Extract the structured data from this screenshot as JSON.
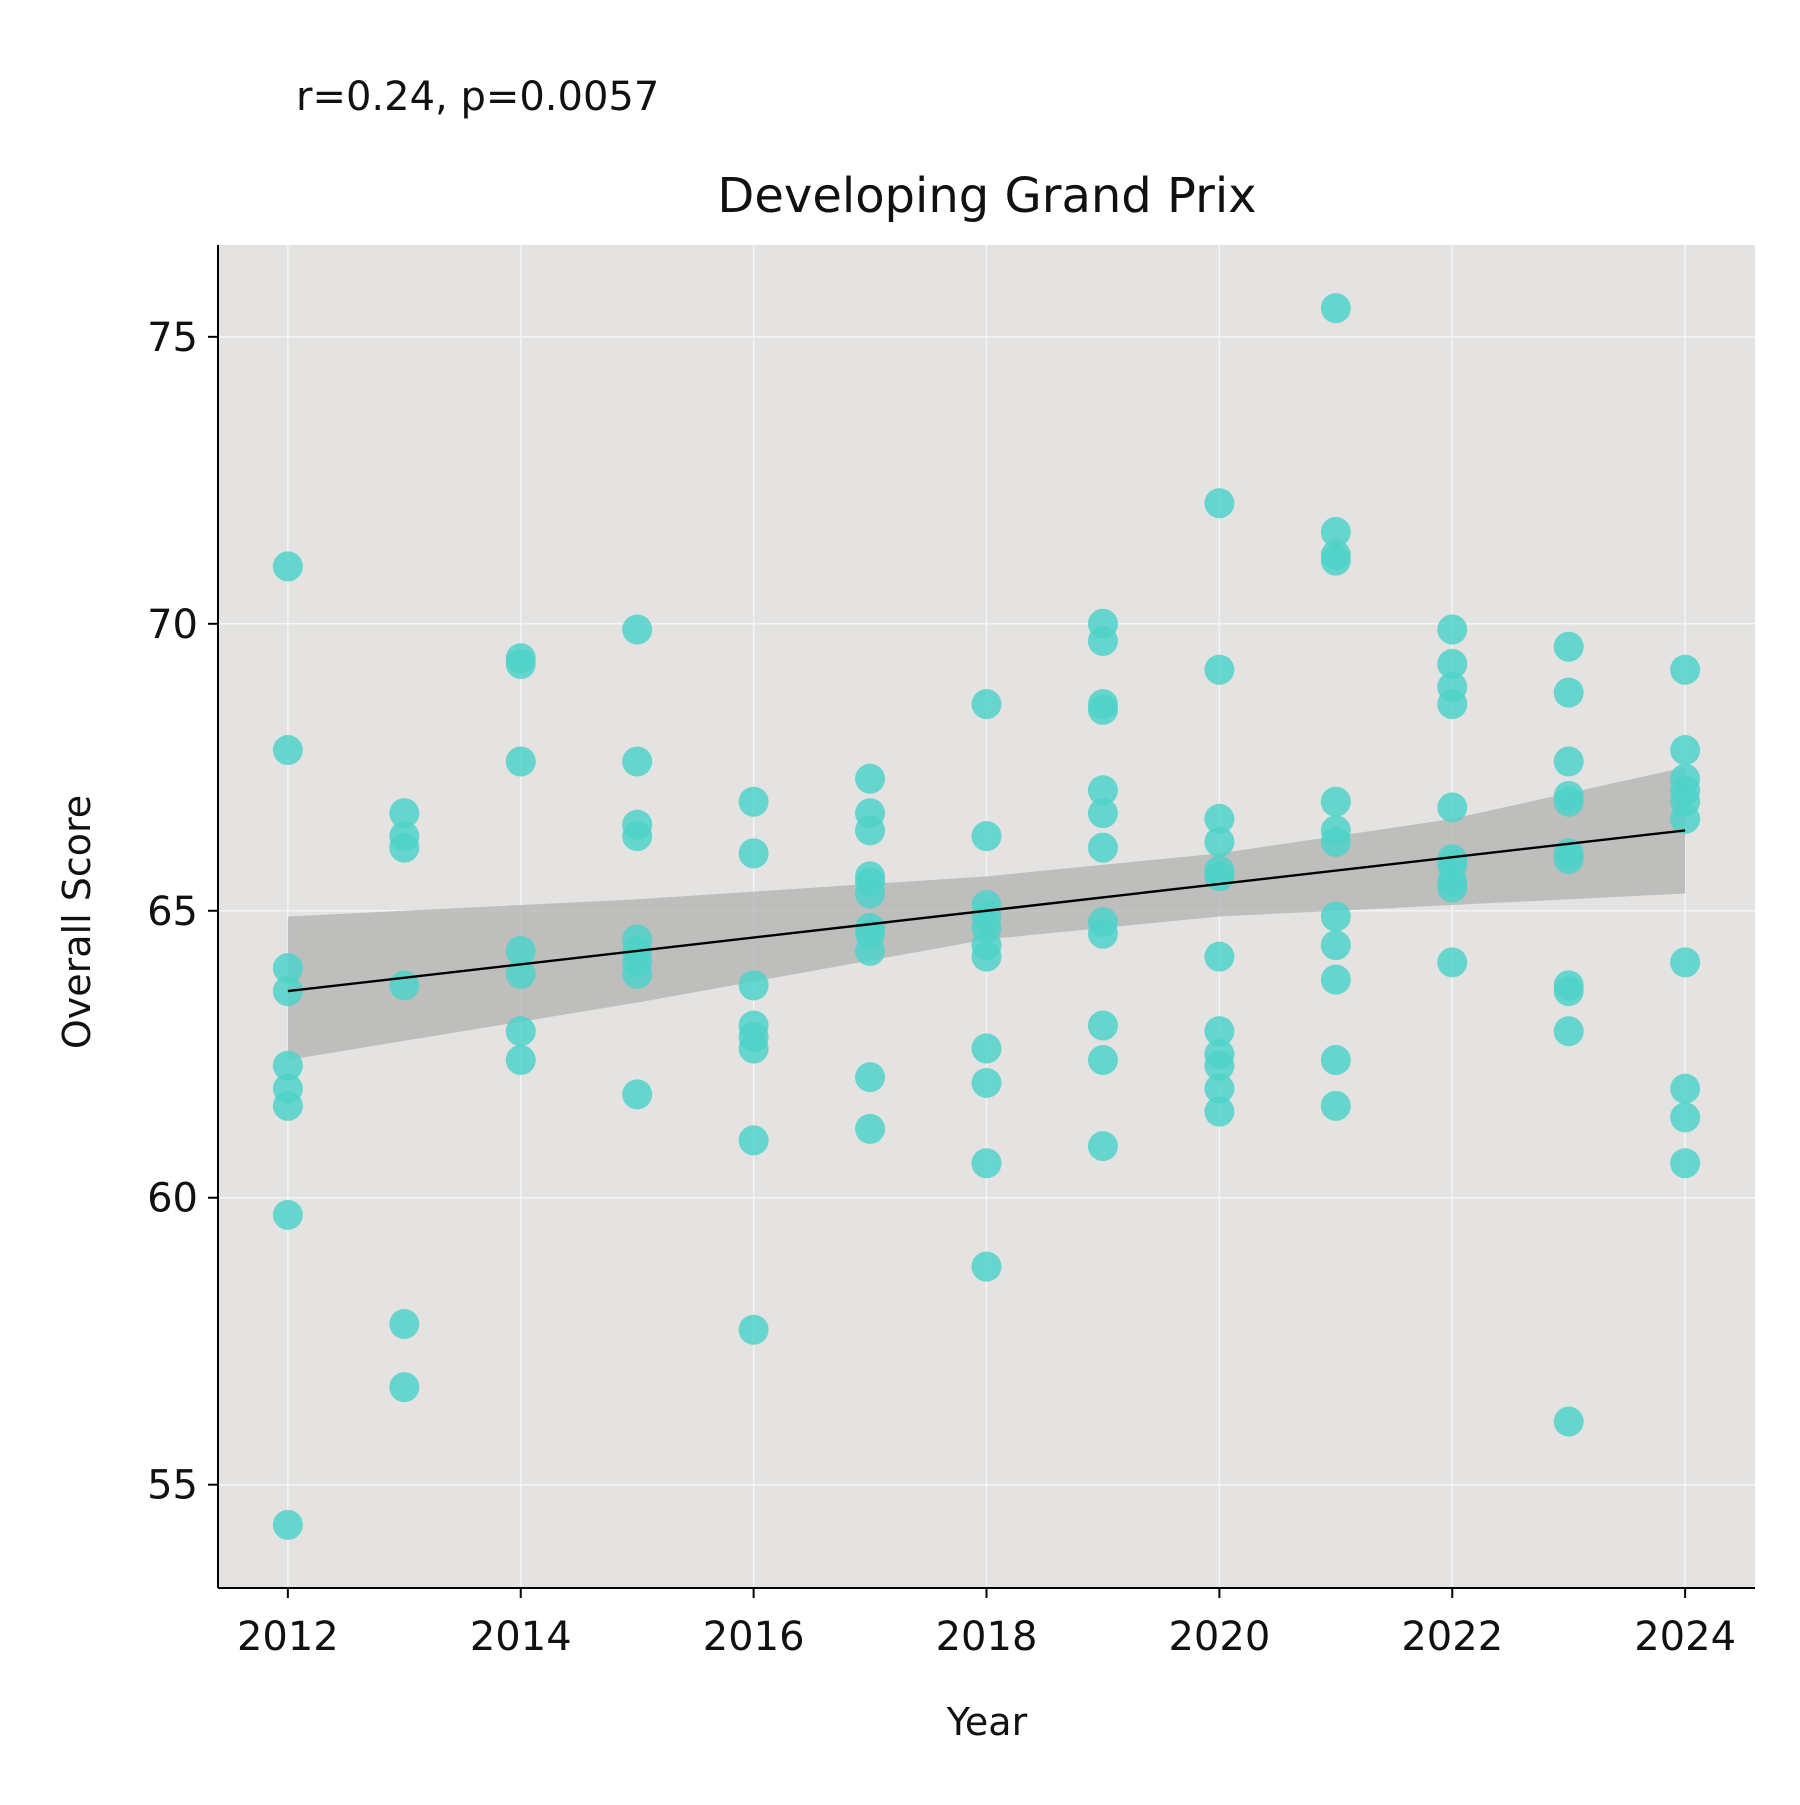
{
  "annotation": "r=0.24, p=0.0057",
  "colors": {
    "background": "#ffffff",
    "plot_background": "#e4e3e2",
    "gridline": "#f4f4f4",
    "point": "#4fd2c9",
    "fit_line": "#000000",
    "confidence_band": "#b2b2b0"
  },
  "chart_data": {
    "type": "scatter",
    "title": "Developing Grand Prix",
    "xlabel": "Year",
    "ylabel": "Overall Score",
    "xlim": [
      2011.4,
      2024.6
    ],
    "ylim": [
      53.2,
      76.6
    ],
    "x_ticks": [
      2012,
      2014,
      2016,
      2018,
      2020,
      2022,
      2024
    ],
    "y_ticks": [
      55,
      60,
      65,
      70,
      75
    ],
    "grid": true,
    "legend": "none",
    "points": [
      {
        "x": 2012,
        "y": 71.0
      },
      {
        "x": 2012,
        "y": 67.8
      },
      {
        "x": 2012,
        "y": 64.0
      },
      {
        "x": 2012,
        "y": 63.6
      },
      {
        "x": 2012,
        "y": 62.3
      },
      {
        "x": 2012,
        "y": 61.9
      },
      {
        "x": 2012,
        "y": 61.6
      },
      {
        "x": 2012,
        "y": 59.7
      },
      {
        "x": 2012,
        "y": 54.3
      },
      {
        "x": 2013,
        "y": 66.7
      },
      {
        "x": 2013,
        "y": 66.3
      },
      {
        "x": 2013,
        "y": 66.1
      },
      {
        "x": 2013,
        "y": 63.7
      },
      {
        "x": 2013,
        "y": 57.8
      },
      {
        "x": 2013,
        "y": 56.7
      },
      {
        "x": 2014,
        "y": 69.4
      },
      {
        "x": 2014,
        "y": 69.3
      },
      {
        "x": 2014,
        "y": 67.6
      },
      {
        "x": 2014,
        "y": 64.3
      },
      {
        "x": 2014,
        "y": 63.9
      },
      {
        "x": 2014,
        "y": 62.9
      },
      {
        "x": 2014,
        "y": 62.4
      },
      {
        "x": 2015,
        "y": 69.9
      },
      {
        "x": 2015,
        "y": 67.6
      },
      {
        "x": 2015,
        "y": 66.5
      },
      {
        "x": 2015,
        "y": 66.3
      },
      {
        "x": 2015,
        "y": 64.5
      },
      {
        "x": 2015,
        "y": 64.3
      },
      {
        "x": 2015,
        "y": 64.1
      },
      {
        "x": 2015,
        "y": 63.9
      },
      {
        "x": 2015,
        "y": 61.8
      },
      {
        "x": 2016,
        "y": 66.9
      },
      {
        "x": 2016,
        "y": 66.0
      },
      {
        "x": 2016,
        "y": 63.7
      },
      {
        "x": 2016,
        "y": 63.0
      },
      {
        "x": 2016,
        "y": 62.8
      },
      {
        "x": 2016,
        "y": 62.6
      },
      {
        "x": 2016,
        "y": 61.0
      },
      {
        "x": 2016,
        "y": 57.7
      },
      {
        "x": 2017,
        "y": 67.3
      },
      {
        "x": 2017,
        "y": 66.7
      },
      {
        "x": 2017,
        "y": 66.4
      },
      {
        "x": 2017,
        "y": 65.6
      },
      {
        "x": 2017,
        "y": 65.5
      },
      {
        "x": 2017,
        "y": 65.3
      },
      {
        "x": 2017,
        "y": 64.7
      },
      {
        "x": 2017,
        "y": 64.6
      },
      {
        "x": 2017,
        "y": 64.3
      },
      {
        "x": 2017,
        "y": 62.1
      },
      {
        "x": 2017,
        "y": 61.2
      },
      {
        "x": 2018,
        "y": 68.6
      },
      {
        "x": 2018,
        "y": 66.3
      },
      {
        "x": 2018,
        "y": 65.1
      },
      {
        "x": 2018,
        "y": 64.9
      },
      {
        "x": 2018,
        "y": 64.7
      },
      {
        "x": 2018,
        "y": 64.4
      },
      {
        "x": 2018,
        "y": 64.2
      },
      {
        "x": 2018,
        "y": 62.6
      },
      {
        "x": 2018,
        "y": 62.0
      },
      {
        "x": 2018,
        "y": 60.6
      },
      {
        "x": 2018,
        "y": 58.8
      },
      {
        "x": 2019,
        "y": 70.0
      },
      {
        "x": 2019,
        "y": 69.7
      },
      {
        "x": 2019,
        "y": 68.6
      },
      {
        "x": 2019,
        "y": 68.5
      },
      {
        "x": 2019,
        "y": 67.1
      },
      {
        "x": 2019,
        "y": 66.7
      },
      {
        "x": 2019,
        "y": 66.1
      },
      {
        "x": 2019,
        "y": 64.8
      },
      {
        "x": 2019,
        "y": 64.6
      },
      {
        "x": 2019,
        "y": 63.0
      },
      {
        "x": 2019,
        "y": 62.4
      },
      {
        "x": 2019,
        "y": 60.9
      },
      {
        "x": 2020,
        "y": 72.1
      },
      {
        "x": 2020,
        "y": 69.2
      },
      {
        "x": 2020,
        "y": 66.6
      },
      {
        "x": 2020,
        "y": 66.2
      },
      {
        "x": 2020,
        "y": 65.7
      },
      {
        "x": 2020,
        "y": 65.6
      },
      {
        "x": 2020,
        "y": 64.2
      },
      {
        "x": 2020,
        "y": 62.9
      },
      {
        "x": 2020,
        "y": 62.5
      },
      {
        "x": 2020,
        "y": 62.3
      },
      {
        "x": 2020,
        "y": 61.9
      },
      {
        "x": 2020,
        "y": 61.5
      },
      {
        "x": 2021,
        "y": 75.5
      },
      {
        "x": 2021,
        "y": 71.6
      },
      {
        "x": 2021,
        "y": 71.2
      },
      {
        "x": 2021,
        "y": 71.1
      },
      {
        "x": 2021,
        "y": 66.9
      },
      {
        "x": 2021,
        "y": 66.4
      },
      {
        "x": 2021,
        "y": 66.2
      },
      {
        "x": 2021,
        "y": 64.9
      },
      {
        "x": 2021,
        "y": 64.4
      },
      {
        "x": 2021,
        "y": 63.8
      },
      {
        "x": 2021,
        "y": 62.4
      },
      {
        "x": 2021,
        "y": 61.6
      },
      {
        "x": 2022,
        "y": 69.9
      },
      {
        "x": 2022,
        "y": 69.3
      },
      {
        "x": 2022,
        "y": 68.9
      },
      {
        "x": 2022,
        "y": 68.6
      },
      {
        "x": 2022,
        "y": 66.8
      },
      {
        "x": 2022,
        "y": 65.9
      },
      {
        "x": 2022,
        "y": 65.8
      },
      {
        "x": 2022,
        "y": 65.5
      },
      {
        "x": 2022,
        "y": 65.4
      },
      {
        "x": 2022,
        "y": 64.1
      },
      {
        "x": 2023,
        "y": 69.6
      },
      {
        "x": 2023,
        "y": 68.8
      },
      {
        "x": 2023,
        "y": 67.6
      },
      {
        "x": 2023,
        "y": 67.0
      },
      {
        "x": 2023,
        "y": 66.9
      },
      {
        "x": 2023,
        "y": 66.0
      },
      {
        "x": 2023,
        "y": 65.9
      },
      {
        "x": 2023,
        "y": 63.7
      },
      {
        "x": 2023,
        "y": 63.6
      },
      {
        "x": 2023,
        "y": 62.9
      },
      {
        "x": 2023,
        "y": 56.1
      },
      {
        "x": 2024,
        "y": 69.2
      },
      {
        "x": 2024,
        "y": 67.8
      },
      {
        "x": 2024,
        "y": 67.3
      },
      {
        "x": 2024,
        "y": 67.1
      },
      {
        "x": 2024,
        "y": 66.9
      },
      {
        "x": 2024,
        "y": 66.6
      },
      {
        "x": 2024,
        "y": 64.1
      },
      {
        "x": 2024,
        "y": 61.9
      },
      {
        "x": 2024,
        "y": 61.4
      },
      {
        "x": 2024,
        "y": 60.6
      }
    ],
    "fit_line": {
      "x": [
        2012,
        2024
      ],
      "y": [
        63.6,
        66.4
      ]
    },
    "confidence_band": [
      {
        "x": 2012,
        "lower": 62.4,
        "upper": 64.9
      },
      {
        "x": 2015,
        "lower": 63.4,
        "upper": 65.2
      },
      {
        "x": 2018,
        "lower": 64.5,
        "upper": 65.6
      },
      {
        "x": 2020,
        "lower": 64.9,
        "upper": 66.0
      },
      {
        "x": 2022,
        "lower": 65.1,
        "upper": 66.6
      },
      {
        "x": 2024,
        "lower": 65.3,
        "upper": 67.5
      }
    ]
  }
}
